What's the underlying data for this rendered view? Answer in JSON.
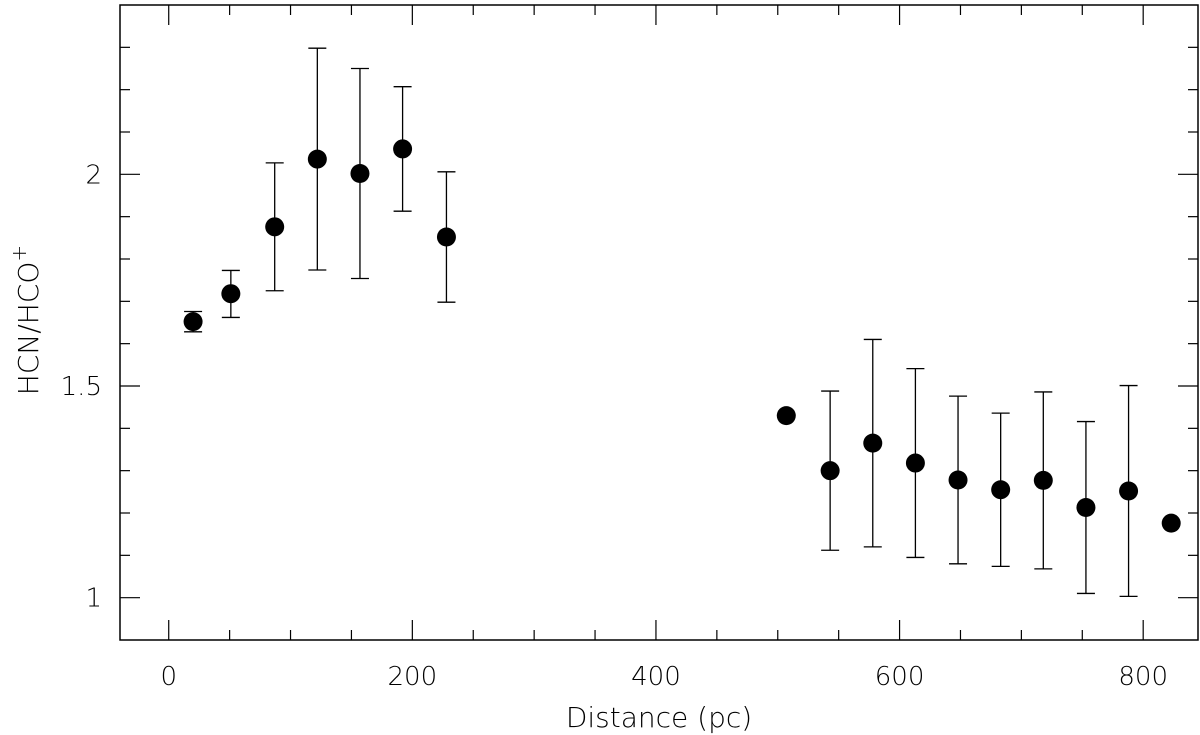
{
  "chart_data": {
    "type": "scatter",
    "xlabel": "Distance (pc)",
    "ylabel": "HCN/HCO",
    "ylabel_sup": "+",
    "xlim": [
      -40,
      845
    ],
    "ylim": [
      0.9,
      2.4
    ],
    "x_major_ticks": [
      0,
      200,
      400,
      600,
      800
    ],
    "x_tick_labels": [
      "0",
      "200",
      "400",
      "600",
      "800"
    ],
    "x_minor_step": 50,
    "y_major_ticks": [
      1,
      1.5,
      2
    ],
    "y_tick_labels": [
      "1",
      "1.5",
      "2"
    ],
    "y_minor_step": 0.1,
    "grid": false,
    "points": [
      {
        "x": 20,
        "y": 1.652,
        "yerr_lo": 1.628,
        "yerr_hi": 1.676
      },
      {
        "x": 51,
        "y": 1.718,
        "yerr_lo": 1.662,
        "yerr_hi": 1.773
      },
      {
        "x": 87,
        "y": 1.876,
        "yerr_lo": 1.725,
        "yerr_hi": 2.027
      },
      {
        "x": 122,
        "y": 2.036,
        "yerr_lo": 1.774,
        "yerr_hi": 2.298
      },
      {
        "x": 157,
        "y": 2.002,
        "yerr_lo": 1.754,
        "yerr_hi": 2.25
      },
      {
        "x": 192,
        "y": 2.06,
        "yerr_lo": 1.913,
        "yerr_hi": 2.207
      },
      {
        "x": 228,
        "y": 1.852,
        "yerr_lo": 1.698,
        "yerr_hi": 2.006
      },
      {
        "x": 507,
        "y": 1.43,
        "yerr_lo": null,
        "yerr_hi": null
      },
      {
        "x": 543,
        "y": 1.3,
        "yerr_lo": 1.112,
        "yerr_hi": 1.488
      },
      {
        "x": 578,
        "y": 1.365,
        "yerr_lo": 1.12,
        "yerr_hi": 1.61
      },
      {
        "x": 613,
        "y": 1.318,
        "yerr_lo": 1.095,
        "yerr_hi": 1.541
      },
      {
        "x": 648,
        "y": 1.278,
        "yerr_lo": 1.08,
        "yerr_hi": 1.476
      },
      {
        "x": 683,
        "y": 1.255,
        "yerr_lo": 1.074,
        "yerr_hi": 1.436
      },
      {
        "x": 718,
        "y": 1.277,
        "yerr_lo": 1.068,
        "yerr_hi": 1.486
      },
      {
        "x": 753,
        "y": 1.213,
        "yerr_lo": 1.01,
        "yerr_hi": 1.416
      },
      {
        "x": 788,
        "y": 1.252,
        "yerr_lo": 1.003,
        "yerr_hi": 1.501
      },
      {
        "x": 823,
        "y": 1.176,
        "yerr_lo": null,
        "yerr_hi": null
      }
    ]
  }
}
